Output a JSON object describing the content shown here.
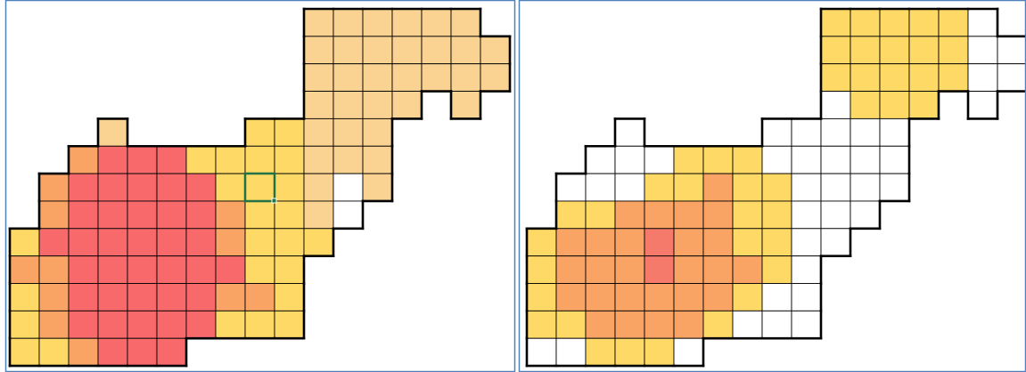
{
  "panels": [
    {
      "rows": [
        [
          null,
          null,
          null,
          null,
          null,
          null,
          null,
          null,
          null,
          null,
          "#FAD291",
          "#FAD291",
          "#FAD291",
          "#FAD291",
          "#FAD291",
          "#FAD291",
          null
        ],
        [
          null,
          null,
          null,
          null,
          null,
          null,
          null,
          null,
          null,
          null,
          "#FAD291",
          "#FAD291",
          "#FAD291",
          "#FAD291",
          "#FAD291",
          "#FAD291",
          "#FAD291"
        ],
        [
          null,
          null,
          null,
          null,
          null,
          null,
          null,
          null,
          null,
          null,
          "#FAD291",
          "#FAD291",
          "#FAD291",
          "#FAD291",
          "#FAD291",
          "#FAD291",
          "#FAD291"
        ],
        [
          null,
          null,
          null,
          null,
          null,
          null,
          null,
          null,
          null,
          null,
          "#FAD291",
          "#FAD291",
          "#FAD291",
          "#FAD291",
          null,
          "#FAD291",
          null
        ],
        [
          null,
          null,
          null,
          "#FAD291",
          null,
          null,
          null,
          null,
          "#FFD966",
          "#FFD966",
          "#FAD291",
          "#FAD291",
          "#FAD291",
          null,
          null,
          null,
          null
        ],
        [
          null,
          null,
          "#F9A465",
          "#F8696B",
          "#F8696B",
          "#F8696B",
          "#FFD966",
          "#FFD966",
          "#FFD966",
          "#FFD966",
          "#FAD291",
          "#FAD291",
          "#FAD291",
          null,
          null,
          null,
          null
        ],
        [
          null,
          "#F9A465",
          "#F8696B",
          "#F8696B",
          "#F8696B",
          "#F8696B",
          "#F8696B",
          "#FFD966",
          "#FFD966",
          "#FFD966",
          "#FAD291",
          "#FFFFFF",
          "#FAD291",
          null,
          null,
          null,
          null
        ],
        [
          null,
          "#F9A465",
          "#F8696B",
          "#F8696B",
          "#F8696B",
          "#F8696B",
          "#F8696B",
          "#F9A465",
          "#FFD966",
          "#FFD966",
          "#FAD291",
          "#FFFFFF",
          null,
          null,
          null,
          null,
          null
        ],
        [
          "#FFD966",
          "#F8696B",
          "#F8696B",
          "#F8696B",
          "#F8696B",
          "#F8696B",
          "#F8696B",
          "#F9A465",
          "#FFD966",
          "#FFD966",
          "#FFD966",
          null,
          null,
          null,
          null,
          null,
          null
        ],
        [
          "#F9A465",
          "#F9A465",
          "#F8696B",
          "#F8696B",
          "#F8696B",
          "#F8696B",
          "#F8696B",
          "#F8696B",
          "#FFD966",
          "#FFD966",
          null,
          null,
          null,
          null,
          null,
          null,
          null
        ],
        [
          "#FFD966",
          "#F9A465",
          "#F8696B",
          "#F8696B",
          "#F8696B",
          "#F8696B",
          "#F8696B",
          "#F9A465",
          "#F9A465",
          "#FFD966",
          null,
          null,
          null,
          null,
          null,
          null,
          null
        ],
        [
          "#FFD966",
          "#F9A465",
          "#F8696B",
          "#F8696B",
          "#F8696B",
          "#F8696B",
          "#F8696B",
          "#FFD966",
          "#FFD966",
          "#FFD966",
          null,
          null,
          null,
          null,
          null,
          null,
          null
        ],
        [
          "#FFD966",
          "#FFD966",
          "#F9A465",
          "#F8696B",
          "#F8696B",
          "#F8696B",
          null,
          null,
          null,
          null,
          null,
          null,
          null,
          null,
          null,
          null,
          null
        ]
      ]
    },
    {
      "rows": [
        [
          null,
          null,
          null,
          null,
          null,
          null,
          null,
          null,
          null,
          null,
          "#FFD966",
          "#FFD966",
          "#FFD966",
          "#FFD966",
          "#FFD966",
          "#FFFFFF",
          null
        ],
        [
          null,
          null,
          null,
          null,
          null,
          null,
          null,
          null,
          null,
          null,
          "#FFD966",
          "#FFD966",
          "#FFD966",
          "#FFD966",
          "#FFD966",
          "#FFFFFF",
          "#FFFFFF"
        ],
        [
          null,
          null,
          null,
          null,
          null,
          null,
          null,
          null,
          null,
          null,
          "#FFD966",
          "#FFD966",
          "#FFD966",
          "#FFD966",
          "#FFD966",
          "#FFFFFF",
          "#FFFFFF"
        ],
        [
          null,
          null,
          null,
          null,
          null,
          null,
          null,
          null,
          null,
          null,
          "#FFFFFF",
          "#FFD966",
          "#FFD966",
          "#FFD966",
          null,
          "#FFFFFF",
          null
        ],
        [
          null,
          null,
          null,
          "#FFFFFF",
          null,
          null,
          null,
          null,
          "#FFFFFF",
          "#FFFFFF",
          "#FFFFFF",
          "#FFFFFF",
          "#FFFFFF",
          null,
          null,
          null,
          null
        ],
        [
          null,
          null,
          "#FFFFFF",
          "#FFFFFF",
          "#FFFFFF",
          "#FFD966",
          "#FFD966",
          "#FFD966",
          "#FFFFFF",
          "#FFFFFF",
          "#FFFFFF",
          "#FFFFFF",
          "#FFFFFF",
          null,
          null,
          null,
          null
        ],
        [
          null,
          "#FFFFFF",
          "#FFFFFF",
          "#FFFFFF",
          "#FFD966",
          "#FFD966",
          "#F9A465",
          "#FFD966",
          "#FFD966",
          "#FFFFFF",
          "#FFFFFF",
          "#FFFFFF",
          "#FFFFFF",
          null,
          null,
          null,
          null
        ],
        [
          null,
          "#FFD966",
          "#FFD966",
          "#F9A465",
          "#F9A465",
          "#F9A465",
          "#F9A465",
          "#FFD966",
          "#FFD966",
          "#FFFFFF",
          "#FFFFFF",
          "#FFFFFF",
          null,
          null,
          null,
          null,
          null
        ],
        [
          "#FFD966",
          "#F9A465",
          "#F9A465",
          "#F9A465",
          "#F57A6C",
          "#F9A465",
          "#F9A465",
          "#FFD966",
          "#FFD966",
          "#FFFFFF",
          "#FFFFFF",
          null,
          null,
          null,
          null,
          null,
          null
        ],
        [
          "#FFD966",
          "#F9A465",
          "#F9A465",
          "#F9A465",
          "#F57A6C",
          "#F9A465",
          "#F9A465",
          "#F9A465",
          "#FFD966",
          "#FFFFFF",
          null,
          null,
          null,
          null,
          null,
          null,
          null
        ],
        [
          "#FFD966",
          "#F9A465",
          "#F9A465",
          "#F9A465",
          "#F9A465",
          "#F9A465",
          "#F9A465",
          "#FFD966",
          "#FFFFFF",
          "#FFFFFF",
          null,
          null,
          null,
          null,
          null,
          null,
          null
        ],
        [
          "#FFD966",
          "#FFD966",
          "#F9A465",
          "#F9A465",
          "#F9A465",
          "#F9A465",
          "#FFD966",
          "#FFFFFF",
          "#FFFFFF",
          "#FFFFFF",
          null,
          null,
          null,
          null,
          null,
          null,
          null
        ],
        [
          "#FFFFFF",
          "#FFFFFF",
          "#FFD966",
          "#FFD966",
          "#FFD966",
          "#FFFFFF",
          null,
          null,
          null,
          null,
          null,
          null,
          null,
          null,
          null,
          null,
          null
        ]
      ]
    }
  ]
}
